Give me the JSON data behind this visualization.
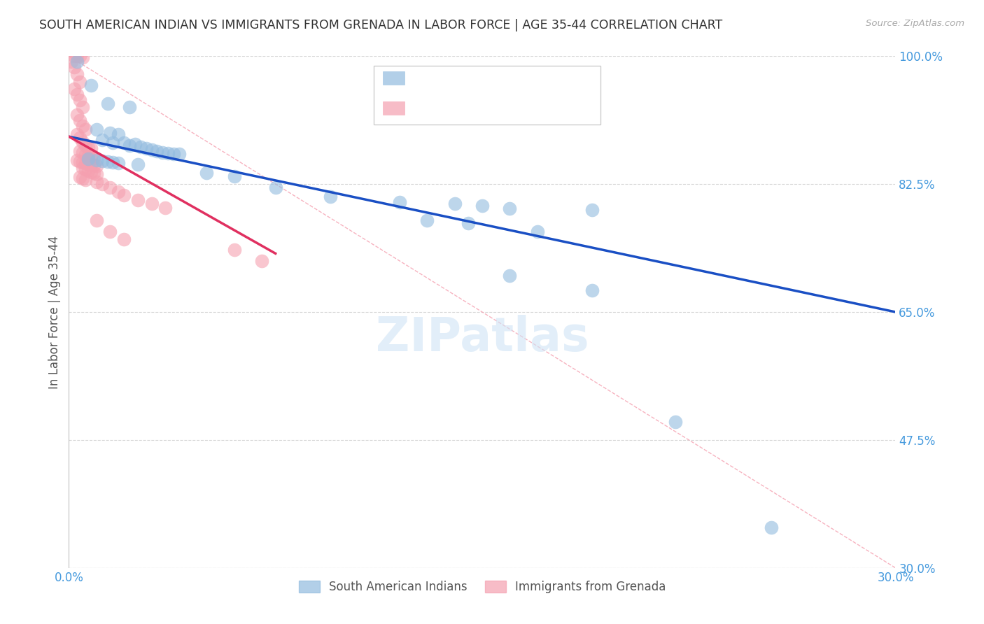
{
  "title": "SOUTH AMERICAN INDIAN VS IMMIGRANTS FROM GRENADA IN LABOR FORCE | AGE 35-44 CORRELATION CHART",
  "source": "Source: ZipAtlas.com",
  "ylabel": "In Labor Force | Age 35-44",
  "xlim": [
    0.0,
    0.3
  ],
  "ylim": [
    0.3,
    1.0
  ],
  "xticks": [
    0.0,
    0.05,
    0.1,
    0.15,
    0.2,
    0.25,
    0.3
  ],
  "xticklabels": [
    "0.0%",
    "",
    "",
    "",
    "",
    "",
    "30.0%"
  ],
  "yticks": [
    0.3,
    0.475,
    0.65,
    0.825,
    1.0
  ],
  "yticklabels": [
    "30.0%",
    "47.5%",
    "65.0%",
    "82.5%",
    "100.0%"
  ],
  "blue_color": "#92BBDF",
  "pink_color": "#F5A0B0",
  "trend_blue_color": "#1A4FC4",
  "trend_pink_color": "#E03060",
  "axis_tick_color": "#4499DD",
  "grid_color": "#CCCCCC",
  "background_color": "#FFFFFF",
  "blue_scatter": [
    [
      0.003,
      0.993
    ],
    [
      0.008,
      0.96
    ],
    [
      0.014,
      0.935
    ],
    [
      0.022,
      0.93
    ],
    [
      0.01,
      0.9
    ],
    [
      0.015,
      0.895
    ],
    [
      0.018,
      0.893
    ],
    [
      0.012,
      0.885
    ],
    [
      0.016,
      0.882
    ],
    [
      0.02,
      0.882
    ],
    [
      0.024,
      0.88
    ],
    [
      0.022,
      0.878
    ],
    [
      0.026,
      0.876
    ],
    [
      0.028,
      0.874
    ],
    [
      0.03,
      0.872
    ],
    [
      0.032,
      0.87
    ],
    [
      0.034,
      0.868
    ],
    [
      0.036,
      0.867
    ],
    [
      0.038,
      0.866
    ],
    [
      0.04,
      0.866
    ],
    [
      0.007,
      0.86
    ],
    [
      0.01,
      0.858
    ],
    [
      0.012,
      0.857
    ],
    [
      0.014,
      0.856
    ],
    [
      0.016,
      0.855
    ],
    [
      0.018,
      0.854
    ],
    [
      0.025,
      0.852
    ],
    [
      0.05,
      0.84
    ],
    [
      0.06,
      0.836
    ],
    [
      0.075,
      0.82
    ],
    [
      0.095,
      0.808
    ],
    [
      0.12,
      0.8
    ],
    [
      0.14,
      0.798
    ],
    [
      0.15,
      0.795
    ],
    [
      0.16,
      0.792
    ],
    [
      0.19,
      0.79
    ],
    [
      0.13,
      0.775
    ],
    [
      0.145,
      0.772
    ],
    [
      0.17,
      0.76
    ],
    [
      0.16,
      0.7
    ],
    [
      0.19,
      0.68
    ],
    [
      0.22,
      0.5
    ],
    [
      0.255,
      0.355
    ]
  ],
  "pink_scatter": [
    [
      0.002,
      1.0
    ],
    [
      0.003,
      1.0
    ],
    [
      0.004,
      1.0
    ],
    [
      0.005,
      0.998
    ],
    [
      0.001,
      0.993
    ],
    [
      0.002,
      0.985
    ],
    [
      0.003,
      0.975
    ],
    [
      0.004,
      0.965
    ],
    [
      0.002,
      0.955
    ],
    [
      0.003,
      0.948
    ],
    [
      0.004,
      0.94
    ],
    [
      0.005,
      0.93
    ],
    [
      0.003,
      0.92
    ],
    [
      0.004,
      0.912
    ],
    [
      0.005,
      0.905
    ],
    [
      0.006,
      0.9
    ],
    [
      0.003,
      0.893
    ],
    [
      0.004,
      0.888
    ],
    [
      0.005,
      0.883
    ],
    [
      0.006,
      0.878
    ],
    [
      0.007,
      0.875
    ],
    [
      0.008,
      0.874
    ],
    [
      0.004,
      0.87
    ],
    [
      0.005,
      0.868
    ],
    [
      0.006,
      0.865
    ],
    [
      0.007,
      0.863
    ],
    [
      0.008,
      0.862
    ],
    [
      0.009,
      0.861
    ],
    [
      0.003,
      0.858
    ],
    [
      0.004,
      0.856
    ],
    [
      0.005,
      0.855
    ],
    [
      0.006,
      0.854
    ],
    [
      0.007,
      0.853
    ],
    [
      0.008,
      0.852
    ],
    [
      0.009,
      0.851
    ],
    [
      0.01,
      0.85
    ],
    [
      0.005,
      0.847
    ],
    [
      0.006,
      0.845
    ],
    [
      0.007,
      0.843
    ],
    [
      0.008,
      0.841
    ],
    [
      0.009,
      0.84
    ],
    [
      0.01,
      0.839
    ],
    [
      0.004,
      0.835
    ],
    [
      0.005,
      0.833
    ],
    [
      0.006,
      0.831
    ],
    [
      0.01,
      0.828
    ],
    [
      0.012,
      0.825
    ],
    [
      0.015,
      0.82
    ],
    [
      0.018,
      0.815
    ],
    [
      0.02,
      0.81
    ],
    [
      0.025,
      0.803
    ],
    [
      0.03,
      0.798
    ],
    [
      0.035,
      0.793
    ],
    [
      0.01,
      0.775
    ],
    [
      0.015,
      0.76
    ],
    [
      0.02,
      0.75
    ],
    [
      0.06,
      0.735
    ],
    [
      0.07,
      0.72
    ]
  ],
  "blue_trend_x": [
    0.0,
    0.3
  ],
  "blue_trend_y": [
    0.89,
    0.65
  ],
  "pink_trend_x": [
    0.0,
    0.075
  ],
  "pink_trend_y": [
    0.89,
    0.73
  ],
  "diag_line_x": [
    0.0,
    0.3
  ],
  "diag_line_y": [
    1.0,
    0.3
  ],
  "title_fontsize": 12.5,
  "axis_label_fontsize": 12,
  "tick_fontsize": 12
}
